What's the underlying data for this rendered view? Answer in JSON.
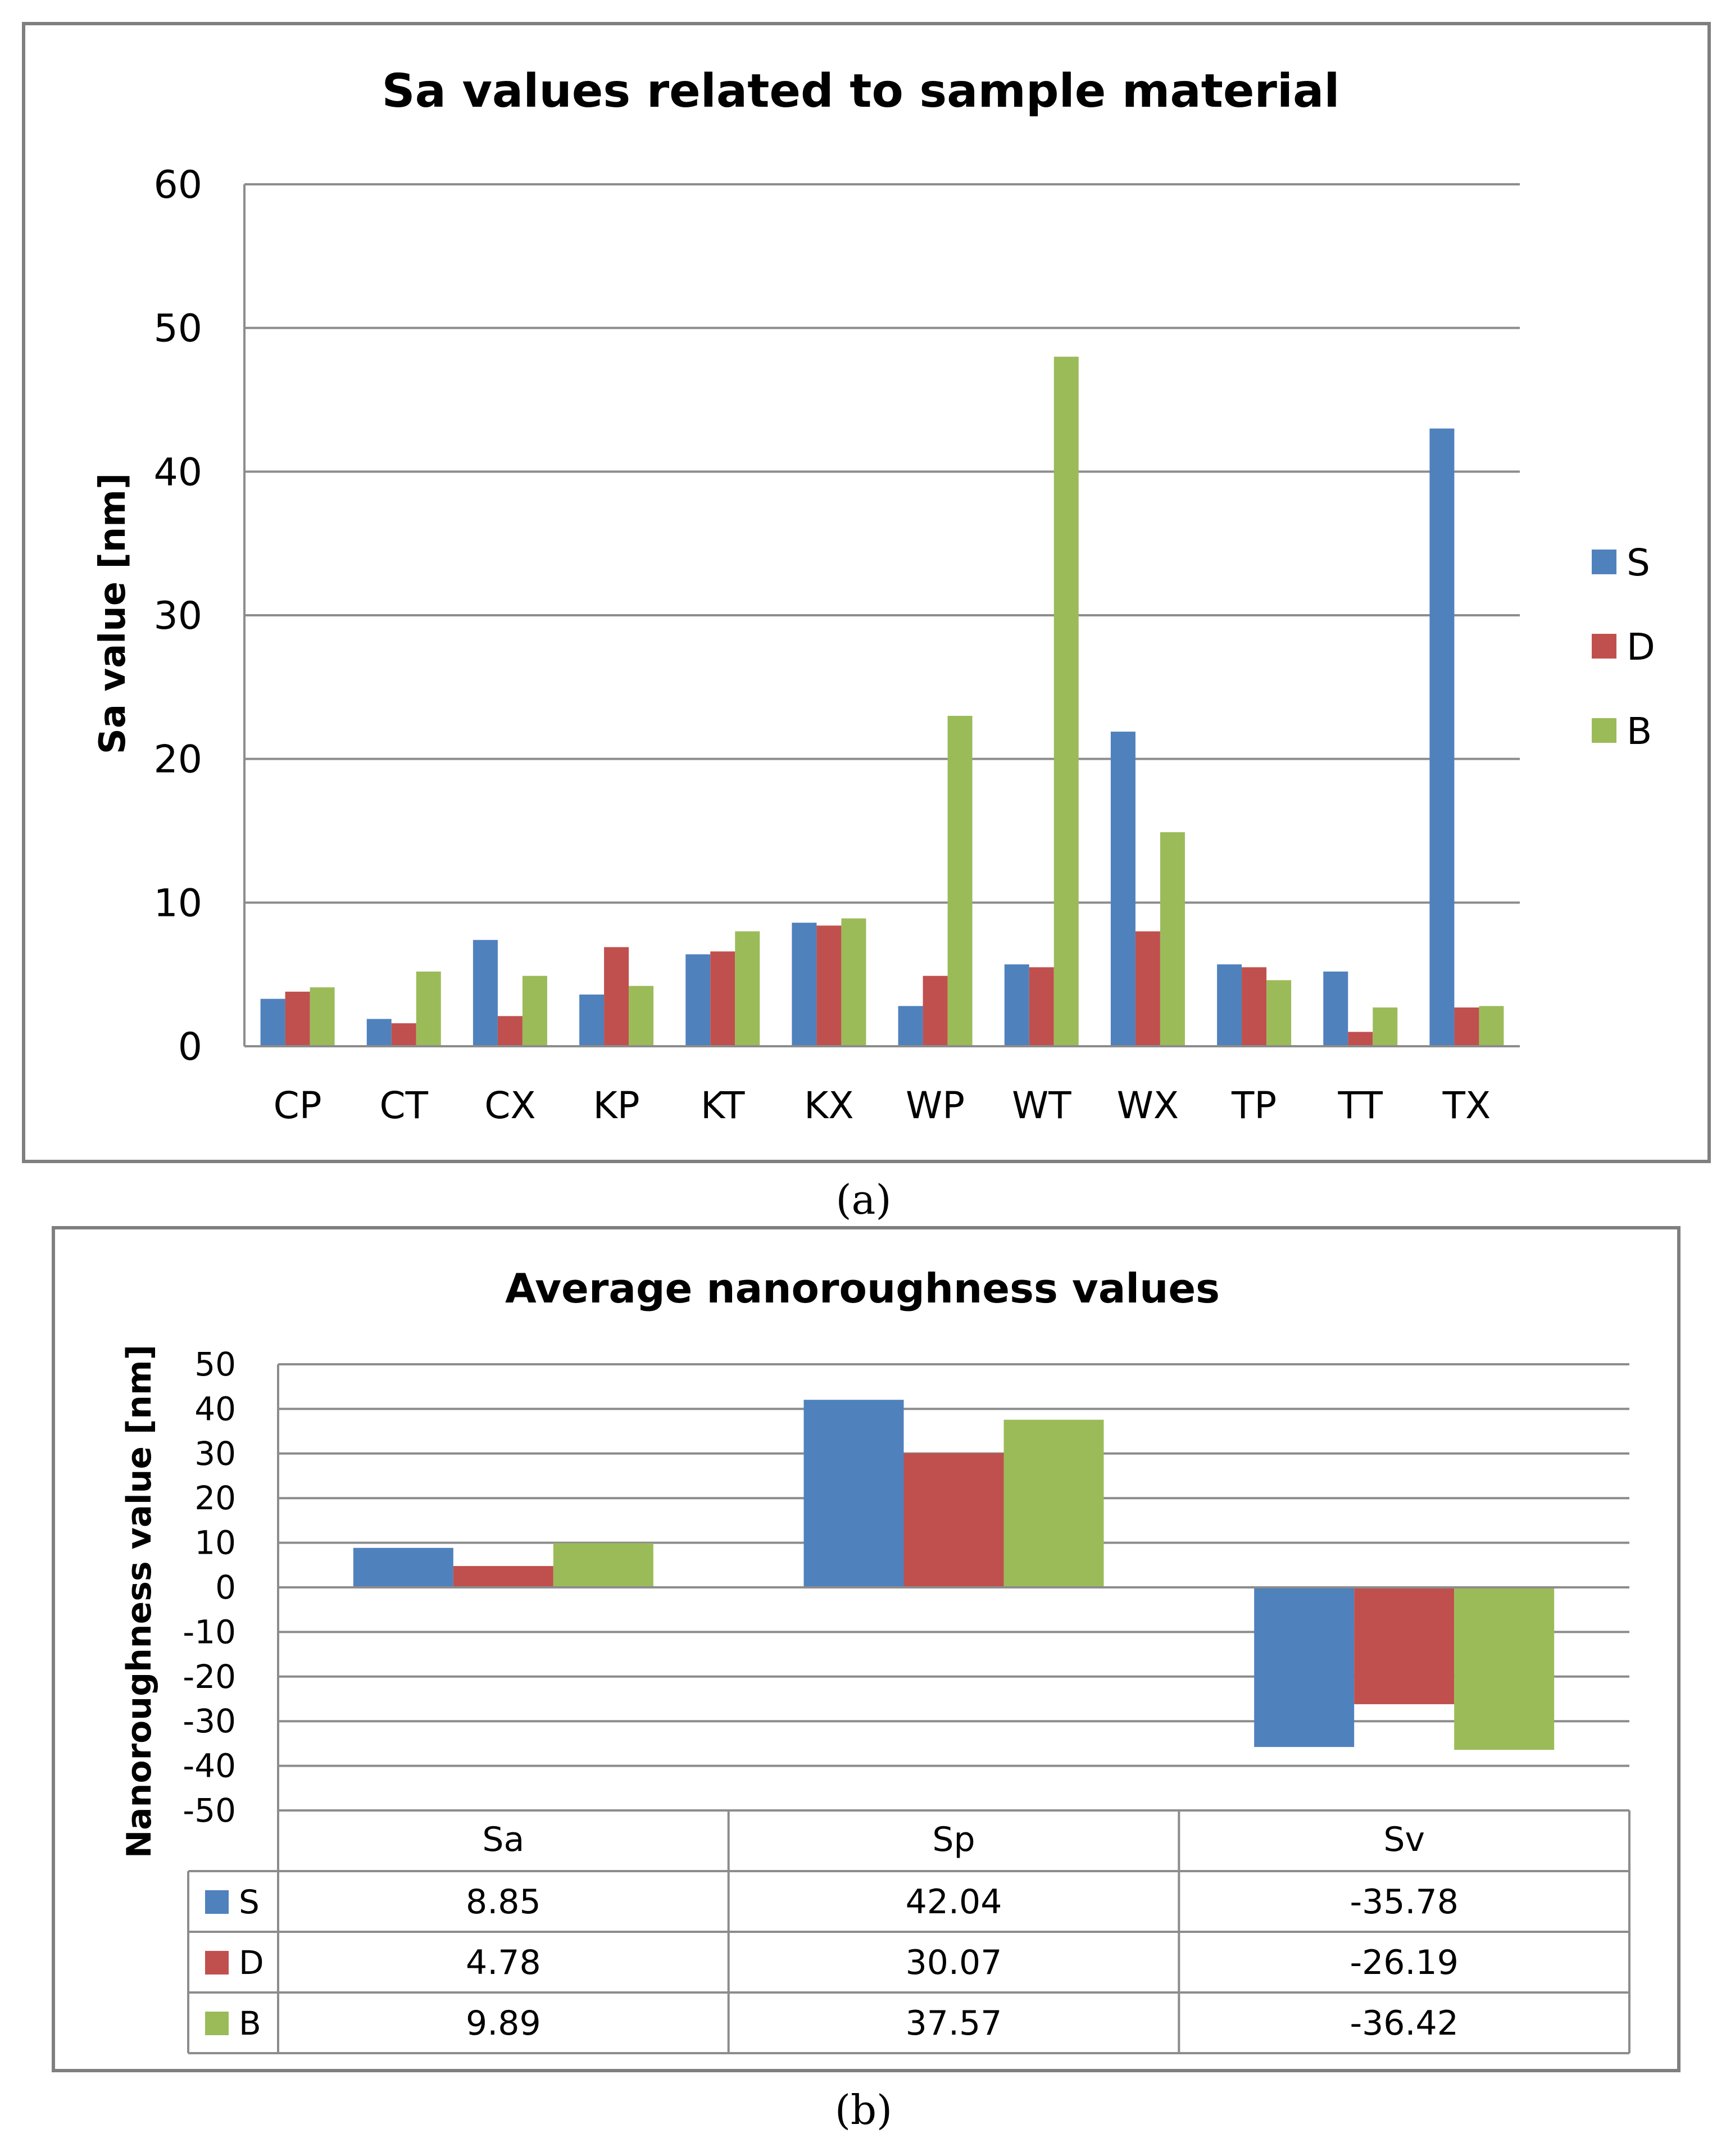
{
  "chart_data": [
    {
      "type": "bar",
      "title": "Sa values related to sample material",
      "xlabel": "",
      "ylabel": "Sa value [nm]",
      "ylim": [
        0,
        60
      ],
      "yticks": [
        0,
        10,
        20,
        30,
        40,
        50,
        60
      ],
      "grid": true,
      "legend_position": "right",
      "categories": [
        "CP",
        "CT",
        "CX",
        "KP",
        "KT",
        "KX",
        "WP",
        "WT",
        "WX",
        "TP",
        "TT",
        "TX"
      ],
      "series": [
        {
          "name": "S",
          "color": "#4F81BD",
          "values": [
            3.3,
            1.9,
            7.4,
            3.6,
            6.4,
            8.6,
            2.8,
            5.7,
            21.9,
            5.7,
            5.2,
            43.0
          ]
        },
        {
          "name": "D",
          "color": "#C0504D",
          "values": [
            3.8,
            1.6,
            2.1,
            6.9,
            6.6,
            8.4,
            4.9,
            5.5,
            8.0,
            5.5,
            1.0,
            2.7
          ]
        },
        {
          "name": "B",
          "color": "#9BBB59",
          "values": [
            4.1,
            5.2,
            4.9,
            4.2,
            8.0,
            8.9,
            23.0,
            48.0,
            14.9,
            4.6,
            2.7,
            2.8
          ]
        }
      ],
      "caption": "(a)"
    },
    {
      "type": "bar",
      "title": "Average nanoroughness  values",
      "xlabel": "",
      "ylabel": "Nanoroughness value  [nm]",
      "ylim": [
        -50,
        50
      ],
      "yticks": [
        50,
        40,
        30,
        20,
        10,
        0,
        -10,
        -20,
        -30,
        -40,
        -50
      ],
      "grid": true,
      "legend_position": "data-table",
      "categories": [
        "Sa",
        "Sp",
        "Sv"
      ],
      "series": [
        {
          "name": "S",
          "color": "#4F81BD",
          "values": [
            8.85,
            42.04,
            -35.78
          ],
          "labels": [
            "8.85",
            "42.04",
            "-35.78"
          ]
        },
        {
          "name": "D",
          "color": "#C0504D",
          "values": [
            4.78,
            30.07,
            -26.19
          ],
          "labels": [
            "4.78",
            "30.07",
            "-26.19"
          ]
        },
        {
          "name": "B",
          "color": "#9BBB59",
          "values": [
            9.89,
            37.57,
            -36.42
          ],
          "labels": [
            "9.89",
            "37.57",
            "-36.42"
          ]
        }
      ],
      "caption": "(b)"
    }
  ]
}
